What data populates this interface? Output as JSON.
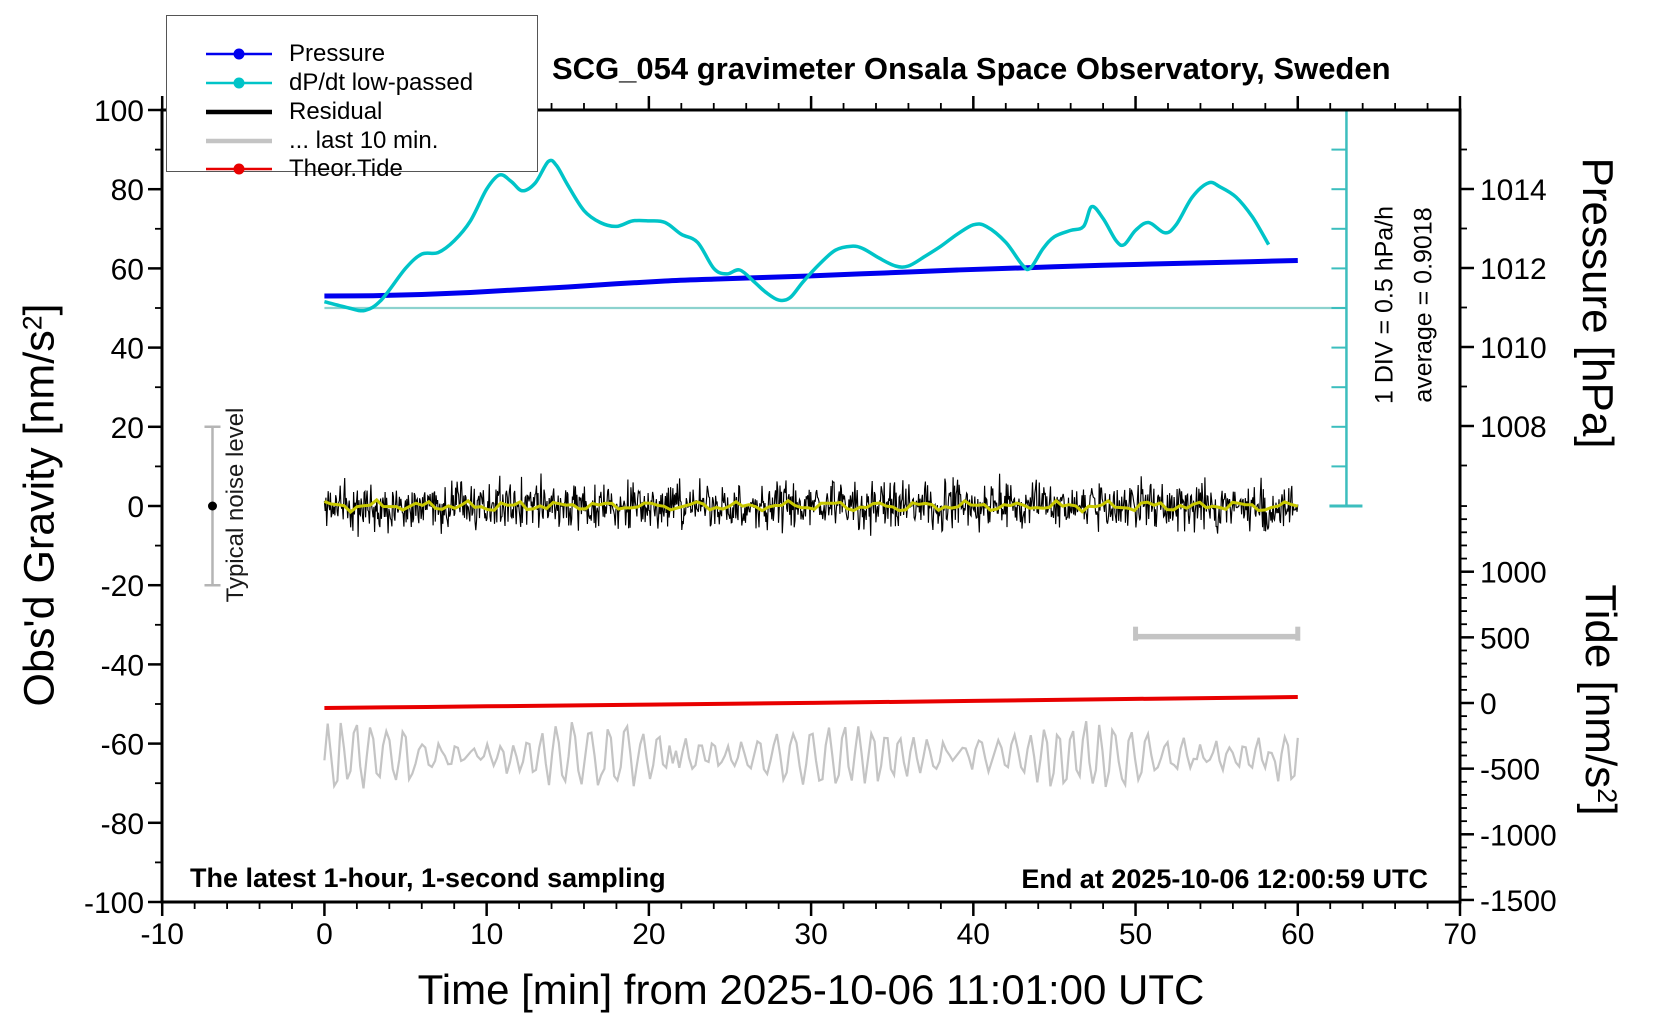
{
  "title": "SCG_054 gravimeter Onsala Space Observatory, Sweden",
  "colors": {
    "pressure_blue": "#0000EE",
    "dpdt_cyan": "#00C4C8",
    "scalebar_teal": "#3CBEBE",
    "ref_line_teal": "#8CD2CE",
    "tide_red": "#E80000",
    "residual_black": "#000000",
    "residual_smoothed_yellow": "#C8C800",
    "last10_gray": "#C4C4C4",
    "noise_bar_gray": "#B5B5B5",
    "frame_black": "#000000"
  },
  "legend": {
    "items": [
      {
        "label": "Pressure",
        "color": "#0000EE",
        "marker": true,
        "weight": 2.5
      },
      {
        "label": "dP/dt low-passed",
        "color": "#00C4C8",
        "marker": true,
        "weight": 2.5
      },
      {
        "label": "Residual",
        "color": "#000000",
        "marker": false,
        "weight": 4.5
      },
      {
        "label": "... last 10 min.",
        "color": "#C4C4C4",
        "marker": false,
        "weight": 4.5
      },
      {
        "label": "Theor.Tide",
        "color": "#E80000",
        "marker": true,
        "weight": 2.5
      }
    ]
  },
  "notes": {
    "sampling": "The latest 1-hour, 1-second sampling",
    "end": "End at 2025-10-06 12:00:59 UTC",
    "div_scale": "1 DIV = 0.5 hPa/h",
    "average": "average = 0.9018",
    "noise_label": "Typical noise level"
  },
  "axes": {
    "x": {
      "title": "Time [min] from 2025-10-06 11:01:00 UTC",
      "min": -10,
      "max": 70,
      "major_ticks": [
        -10,
        0,
        10,
        20,
        30,
        40,
        50,
        60,
        70
      ],
      "minor_step": 2
    },
    "gravity": {
      "title_pre": "Obs'd Gravity [nm/s",
      "title_sup": "2",
      "title_post": "]",
      "min": -100,
      "max": 100,
      "major_step": 20,
      "minor_step": 10
    },
    "pressure": {
      "title": "Pressure [hPa]",
      "major_ticks": [
        1014,
        1012,
        1010,
        1008
      ],
      "minor_ticks": [
        1015,
        1013,
        1011,
        1009,
        1007
      ]
    },
    "tide": {
      "title_pre": "Tide [nm/s",
      "title_sup": "2",
      "title_post": "]",
      "major_ticks": [
        1000,
        500,
        0,
        -500,
        -1000,
        -1500
      ],
      "minor_from": 1500,
      "minor_to": -1500,
      "minor_step": 100
    }
  },
  "chart_data": {
    "type": "line",
    "x_units": "min",
    "x_range": [
      -10,
      70
    ],
    "gravity_range": [
      -100,
      100
    ],
    "pressure_axis": {
      "ref_value": 1012,
      "px_per_hPa_note": "2 hPa per major division"
    },
    "tide_axis_range": [
      -1500,
      1500
    ],
    "series": [
      {
        "name": "Pressure",
        "units": "hPa",
        "color": "#0000EE",
        "points": [
          [
            0,
            1011.29
          ],
          [
            3,
            1011.3
          ],
          [
            6,
            1011.33
          ],
          [
            9,
            1011.38
          ],
          [
            12,
            1011.45
          ],
          [
            15,
            1011.52
          ],
          [
            18,
            1011.6
          ],
          [
            21,
            1011.67
          ],
          [
            24,
            1011.72
          ],
          [
            27,
            1011.76
          ],
          [
            30,
            1011.8
          ],
          [
            33,
            1011.85
          ],
          [
            36,
            1011.9
          ],
          [
            39,
            1011.95
          ],
          [
            42,
            1011.99
          ],
          [
            45,
            1012.03
          ],
          [
            48,
            1012.07
          ],
          [
            51,
            1012.1
          ],
          [
            54,
            1012.13
          ],
          [
            57,
            1012.16
          ],
          [
            60,
            1012.19
          ]
        ]
      },
      {
        "name": "dP/dt low-passed",
        "units": "hPa/h",
        "color": "#00C4C8",
        "zero_ref_gravity": 50,
        "units_per_div": 0.5,
        "average": 0.9018,
        "points": [
          [
            0,
            0.08
          ],
          [
            1.5,
            0.0
          ],
          [
            2.5,
            -0.03
          ],
          [
            3.5,
            0.1
          ],
          [
            5,
            0.5
          ],
          [
            6,
            0.68
          ],
          [
            7,
            0.7
          ],
          [
            8,
            0.85
          ],
          [
            9,
            1.1
          ],
          [
            10,
            1.5
          ],
          [
            10.8,
            1.68
          ],
          [
            11.5,
            1.6
          ],
          [
            12.2,
            1.48
          ],
          [
            13,
            1.58
          ],
          [
            13.8,
            1.85
          ],
          [
            14.3,
            1.8
          ],
          [
            15,
            1.55
          ],
          [
            16,
            1.23
          ],
          [
            17,
            1.08
          ],
          [
            18,
            1.03
          ],
          [
            19,
            1.1
          ],
          [
            20,
            1.1
          ],
          [
            21,
            1.08
          ],
          [
            22,
            0.93
          ],
          [
            23,
            0.83
          ],
          [
            24,
            0.5
          ],
          [
            24.8,
            0.43
          ],
          [
            25.6,
            0.48
          ],
          [
            26.5,
            0.33
          ],
          [
            27.2,
            0.2
          ],
          [
            28,
            0.1
          ],
          [
            28.7,
            0.13
          ],
          [
            29.5,
            0.33
          ],
          [
            30.5,
            0.55
          ],
          [
            31.5,
            0.73
          ],
          [
            32.5,
            0.78
          ],
          [
            33.2,
            0.75
          ],
          [
            34.2,
            0.63
          ],
          [
            35.2,
            0.53
          ],
          [
            36,
            0.53
          ],
          [
            37,
            0.65
          ],
          [
            38,
            0.78
          ],
          [
            39,
            0.93
          ],
          [
            40,
            1.05
          ],
          [
            40.8,
            1.03
          ],
          [
            42,
            0.83
          ],
          [
            43,
            0.55
          ],
          [
            43.5,
            0.5
          ],
          [
            44.3,
            0.75
          ],
          [
            45,
            0.9
          ],
          [
            46,
            0.98
          ],
          [
            46.8,
            1.03
          ],
          [
            47.3,
            1.28
          ],
          [
            48,
            1.13
          ],
          [
            48.8,
            0.85
          ],
          [
            49.3,
            0.8
          ],
          [
            50,
            0.98
          ],
          [
            50.8,
            1.08
          ],
          [
            51.8,
            0.95
          ],
          [
            52.5,
            1.05
          ],
          [
            53.5,
            1.4
          ],
          [
            54.5,
            1.58
          ],
          [
            55.2,
            1.53
          ],
          [
            56.2,
            1.4
          ],
          [
            57.2,
            1.15
          ],
          [
            58.2,
            0.8
          ]
        ]
      },
      {
        "name": "Residual",
        "units": "nm/s2",
        "color": "#000000",
        "mean": 0,
        "typical_range": [
          -8,
          8
        ],
        "spike_range": [
          -16,
          16
        ],
        "n": 1300,
        "seed": 11,
        "smoothed_overlay": {
          "color": "#C8C800",
          "amplitude": 1.1,
          "n": 150,
          "seed": 5
        }
      },
      {
        "name": "... last 10 min.",
        "units": "nm/s2",
        "color": "#C4C4C4",
        "display_center_gravity": -63,
        "amplitude": 8,
        "n": 300,
        "seed": 23
      },
      {
        "name": "Theor.Tide",
        "units": "nm/s2 (tide axis)",
        "color": "#E80000",
        "points": [
          [
            0,
            -38
          ],
          [
            10,
            -25
          ],
          [
            20,
            -12
          ],
          [
            30,
            1
          ],
          [
            40,
            16
          ],
          [
            50,
            31
          ],
          [
            60,
            46
          ]
        ]
      }
    ],
    "markers": {
      "noise_bar": {
        "label": "Typical noise level",
        "t": -6.9,
        "gravity_range": [
          -20,
          20
        ],
        "dot_at": 0
      },
      "extent_bar": {
        "t_range": [
          50,
          60
        ],
        "gravity_level": -33
      },
      "div_scalebar": {
        "t": 63,
        "gravity_top": 100,
        "gravity_bottom": 0,
        "tick_step_gravity": 10,
        "zero_line_gravity": 50
      }
    }
  }
}
